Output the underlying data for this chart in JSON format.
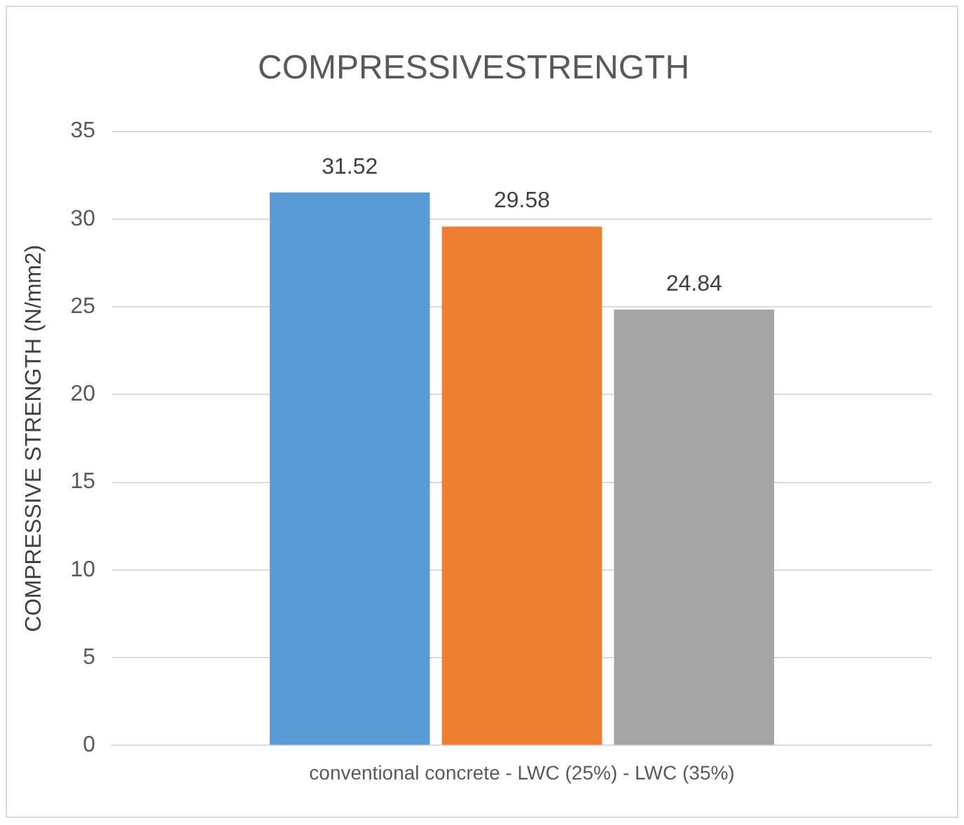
{
  "chart_data": {
    "type": "bar",
    "title": "COMPRESSIVESTRENGTH",
    "ylabel": "COMPRESSIVE STRENGTH (N/mm2)",
    "categories": [
      "conventional concrete - LWC (25%) - LWC (35%)"
    ],
    "series": [
      {
        "color": "#5b9bd5",
        "values": [
          31.52
        ]
      },
      {
        "color": "#ed7d31",
        "values": [
          29.58
        ]
      },
      {
        "color": "#a5a5a5",
        "values": [
          24.84
        ]
      }
    ],
    "ylim": [
      0,
      35
    ],
    "yticks": [
      0,
      5,
      10,
      15,
      20,
      25,
      30,
      35
    ],
    "grid": "y",
    "data_labels": true
  }
}
